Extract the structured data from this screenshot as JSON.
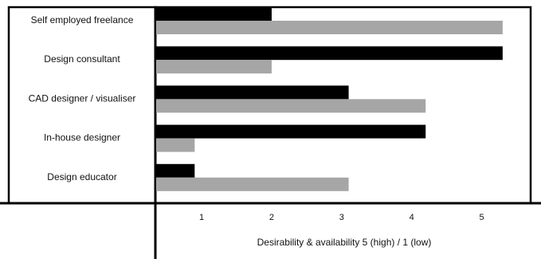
{
  "chart_data": {
    "type": "bar",
    "orientation": "horizontal",
    "categories": [
      "Self employed freelance",
      "Design consultant",
      "CAD designer / visualiser",
      "In-house designer",
      "Design educator"
    ],
    "series": [
      {
        "values": [
          2,
          5.3,
          3.1,
          4.2,
          0.9
        ],
        "color": "#000000"
      },
      {
        "values": [
          5.3,
          2,
          4.2,
          0.9,
          3.1
        ],
        "color": "#a6a6a6"
      }
    ],
    "x_ticks": [
      1,
      2,
      3,
      4,
      5
    ],
    "xlim": [
      0.35,
      5.7
    ],
    "xlabel": "Desirability & availability 5 (high)  /  1 (low)",
    "ylabel": "",
    "title": "",
    "grid": false,
    "legend": "none"
  }
}
